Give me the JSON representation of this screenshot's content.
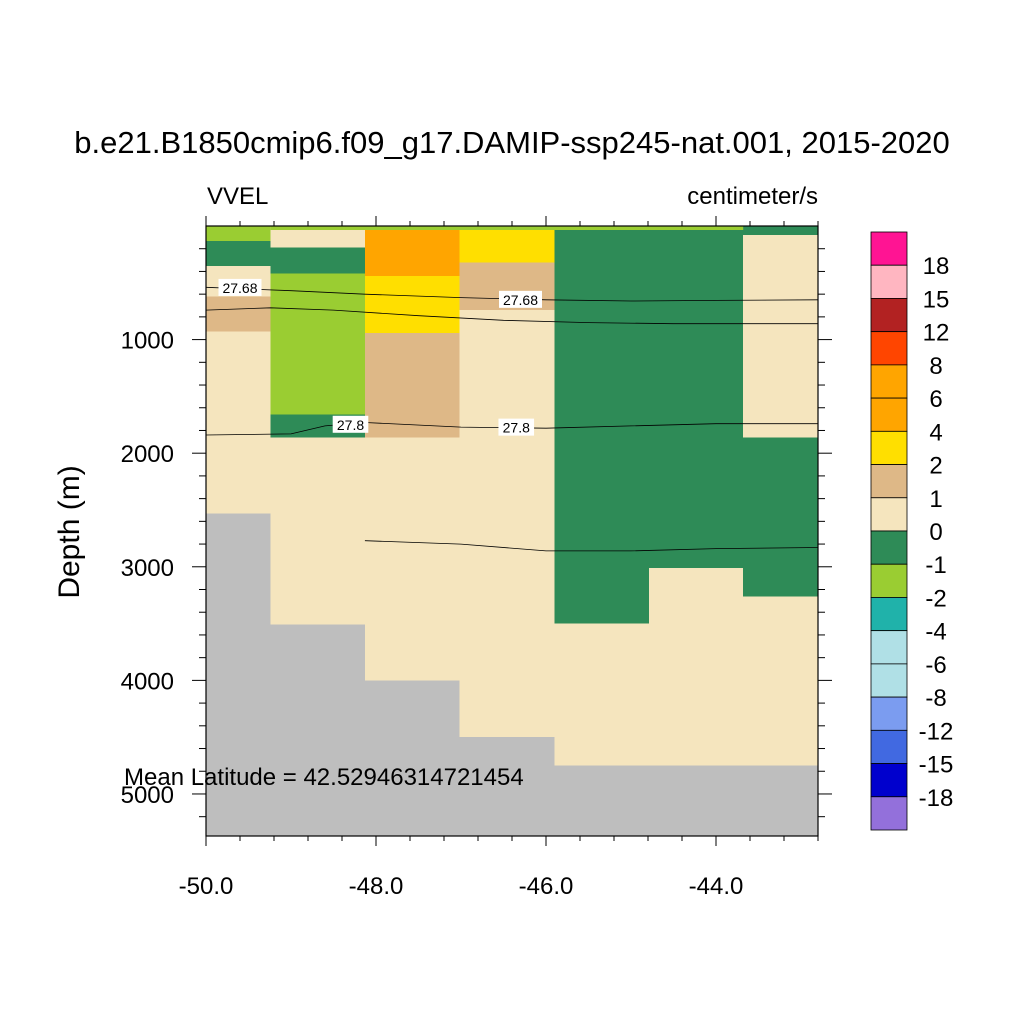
{
  "figure": {
    "title": "b.e21.B1850cmip6.f09_g17.DAMIP-ssp245-nat.001, 2015-2020",
    "left_subtitle": "VVEL",
    "right_subtitle": "centimeter/s",
    "annotation": "Mean Latitude = 42.52946314721454"
  },
  "chart_data": {
    "type": "heatmap",
    "title": "b.e21.B1850cmip6.f09_g17.DAMIP-ssp245-nat.001, 2015-2020",
    "variable": "VVEL",
    "units": "centimeter/s",
    "xlabel": "",
    "ylabel": "Depth (m)",
    "xlim": [
      -50.0,
      -42.8
    ],
    "ylim": [
      5370,
      0
    ],
    "x_ticks": [
      -50.0,
      -48.0,
      -46.0,
      -44.0
    ],
    "x_tick_labels": [
      "-50.0",
      "-48.0",
      "-46.0",
      "-44.0"
    ],
    "y_ticks": [
      1000,
      2000,
      3000,
      4000,
      5000
    ],
    "y_tick_labels": [
      "1000",
      "2000",
      "3000",
      "4000",
      "5000"
    ],
    "missing_color": "#bebebe",
    "colorbar": {
      "levels": [
        "18",
        "15",
        "12",
        "8",
        "6",
        "4",
        "2",
        "1",
        "0",
        "-1",
        "-2",
        "-4",
        "-6",
        "-8",
        "-12",
        "-15",
        "-18"
      ],
      "colors": [
        "#ff1493",
        "#ffb6c1",
        "#b22222",
        "#ff4500",
        "#ffa500",
        "#ffa500",
        "#ffdf00",
        "#deb887",
        "#f5e5be",
        "#2e8b57",
        "#9acd32",
        "#20b2aa",
        "#b0e0e6",
        "#b0e0e6",
        "#7b9cf0",
        "#4169e1",
        "#0000cd",
        "#9370db"
      ]
    },
    "cells": [
      {
        "x0": -50.0,
        "x1": -49.24,
        "d0": 0,
        "d1": 130,
        "color": "#9acd32"
      },
      {
        "x0": -50.0,
        "x1": -49.24,
        "d0": 130,
        "d1": 350,
        "color": "#2e8b57"
      },
      {
        "x0": -50.0,
        "x1": -49.24,
        "d0": 350,
        "d1": 620,
        "color": "#f5e5be"
      },
      {
        "x0": -50.0,
        "x1": -49.24,
        "d0": 620,
        "d1": 930,
        "color": "#deb887"
      },
      {
        "x0": -50.0,
        "x1": -49.24,
        "d0": 930,
        "d1": 2530,
        "color": "#f5e5be"
      },
      {
        "x0": -50.0,
        "x1": -49.24,
        "d0": 2530,
        "d1": 5370,
        "color": "#bebebe"
      },
      {
        "x0": -49.24,
        "x1": -48.13,
        "d0": 0,
        "d1": 190,
        "color": "#f5e5be"
      },
      {
        "x0": -49.24,
        "x1": -48.13,
        "d0": 190,
        "d1": 420,
        "color": "#2e8b57"
      },
      {
        "x0": -49.24,
        "x1": -48.13,
        "d0": 420,
        "d1": 1660,
        "color": "#9acd32"
      },
      {
        "x0": -49.24,
        "x1": -48.13,
        "d0": 1660,
        "d1": 1860,
        "color": "#2e8b57"
      },
      {
        "x0": -49.24,
        "x1": -48.13,
        "d0": 1860,
        "d1": 3510,
        "color": "#f5e5be"
      },
      {
        "x0": -49.24,
        "x1": -48.13,
        "d0": 3510,
        "d1": 5370,
        "color": "#bebebe"
      },
      {
        "x0": -48.13,
        "x1": -47.02,
        "d0": 0,
        "d1": 440,
        "color": "#ffa500"
      },
      {
        "x0": -48.13,
        "x1": -47.02,
        "d0": 440,
        "d1": 940,
        "color": "#ffdf00"
      },
      {
        "x0": -48.13,
        "x1": -47.02,
        "d0": 940,
        "d1": 1860,
        "color": "#deb887"
      },
      {
        "x0": -48.13,
        "x1": -47.02,
        "d0": 1860,
        "d1": 4000,
        "color": "#f5e5be"
      },
      {
        "x0": -48.13,
        "x1": -47.02,
        "d0": 4000,
        "d1": 5370,
        "color": "#bebebe"
      },
      {
        "x0": -47.02,
        "x1": -45.9,
        "d0": 0,
        "d1": 320,
        "color": "#ffdf00"
      },
      {
        "x0": -47.02,
        "x1": -45.9,
        "d0": 320,
        "d1": 740,
        "color": "#deb887"
      },
      {
        "x0": -47.02,
        "x1": -45.9,
        "d0": 740,
        "d1": 4500,
        "color": "#f5e5be"
      },
      {
        "x0": -47.02,
        "x1": -45.9,
        "d0": 4500,
        "d1": 5370,
        "color": "#bebebe"
      },
      {
        "x0": -45.9,
        "x1": -44.79,
        "d0": 0,
        "d1": 3500,
        "color": "#2e8b57"
      },
      {
        "x0": -45.9,
        "x1": -44.79,
        "d0": 3500,
        "d1": 4750,
        "color": "#f5e5be"
      },
      {
        "x0": -45.9,
        "x1": -44.79,
        "d0": 4750,
        "d1": 5370,
        "color": "#bebebe"
      },
      {
        "x0": -44.79,
        "x1": -43.68,
        "d0": 0,
        "d1": 3010,
        "color": "#2e8b57"
      },
      {
        "x0": -44.79,
        "x1": -43.68,
        "d0": 3010,
        "d1": 4750,
        "color": "#f5e5be"
      },
      {
        "x0": -44.79,
        "x1": -43.68,
        "d0": 4750,
        "d1": 5370,
        "color": "#bebebe"
      },
      {
        "x0": -43.68,
        "x1": -42.8,
        "d0": 0,
        "d1": 80,
        "color": "#2e8b57"
      },
      {
        "x0": -43.68,
        "x1": -42.8,
        "d0": 80,
        "d1": 1860,
        "color": "#f5e5be"
      },
      {
        "x0": -43.68,
        "x1": -42.8,
        "d0": 1860,
        "d1": 3260,
        "color": "#2e8b57"
      },
      {
        "x0": -43.68,
        "x1": -42.8,
        "d0": 3260,
        "d1": 4750,
        "color": "#f5e5be"
      },
      {
        "x0": -43.68,
        "x1": -42.8,
        "d0": 4750,
        "d1": 5370,
        "color": "#bebebe"
      }
    ],
    "top_strip": {
      "x0": -49.24,
      "x1": -43.68,
      "d0": 0,
      "d1": 25,
      "color": "#9acd32"
    },
    "contours": [
      {
        "label": "27.68",
        "points": [
          [
            -50.0,
            540
          ],
          [
            -49.0,
            570
          ],
          [
            -48.13,
            600
          ],
          [
            -47.0,
            630
          ],
          [
            -46.0,
            650
          ],
          [
            -45.0,
            660
          ],
          [
            -44.0,
            655
          ],
          [
            -42.8,
            650
          ]
        ],
        "labels_at": [
          [
            -49.6,
            545
          ],
          [
            -46.3,
            650
          ]
        ]
      },
      {
        "label": "",
        "points": [
          [
            -50.0,
            740
          ],
          [
            -49.24,
            720
          ],
          [
            -48.5,
            740
          ],
          [
            -47.5,
            790
          ],
          [
            -46.5,
            830
          ],
          [
            -45.5,
            850
          ],
          [
            -44.5,
            860
          ],
          [
            -42.8,
            860
          ]
        ],
        "labels_at": []
      },
      {
        "label": "27.8",
        "points": [
          [
            -50.0,
            1840
          ],
          [
            -49.0,
            1830
          ],
          [
            -48.6,
            1760
          ],
          [
            -48.13,
            1730
          ],
          [
            -47.0,
            1770
          ],
          [
            -46.0,
            1780
          ],
          [
            -45.0,
            1760
          ],
          [
            -44.0,
            1740
          ],
          [
            -42.8,
            1740
          ]
        ],
        "labels_at": [
          [
            -48.3,
            1750
          ],
          [
            -46.35,
            1775
          ]
        ]
      },
      {
        "label": "",
        "points": [
          [
            -48.13,
            2770
          ],
          [
            -47.0,
            2800
          ],
          [
            -46.0,
            2860
          ],
          [
            -45.0,
            2860
          ],
          [
            -44.0,
            2840
          ],
          [
            -42.8,
            2830
          ]
        ],
        "labels_at": []
      }
    ]
  }
}
